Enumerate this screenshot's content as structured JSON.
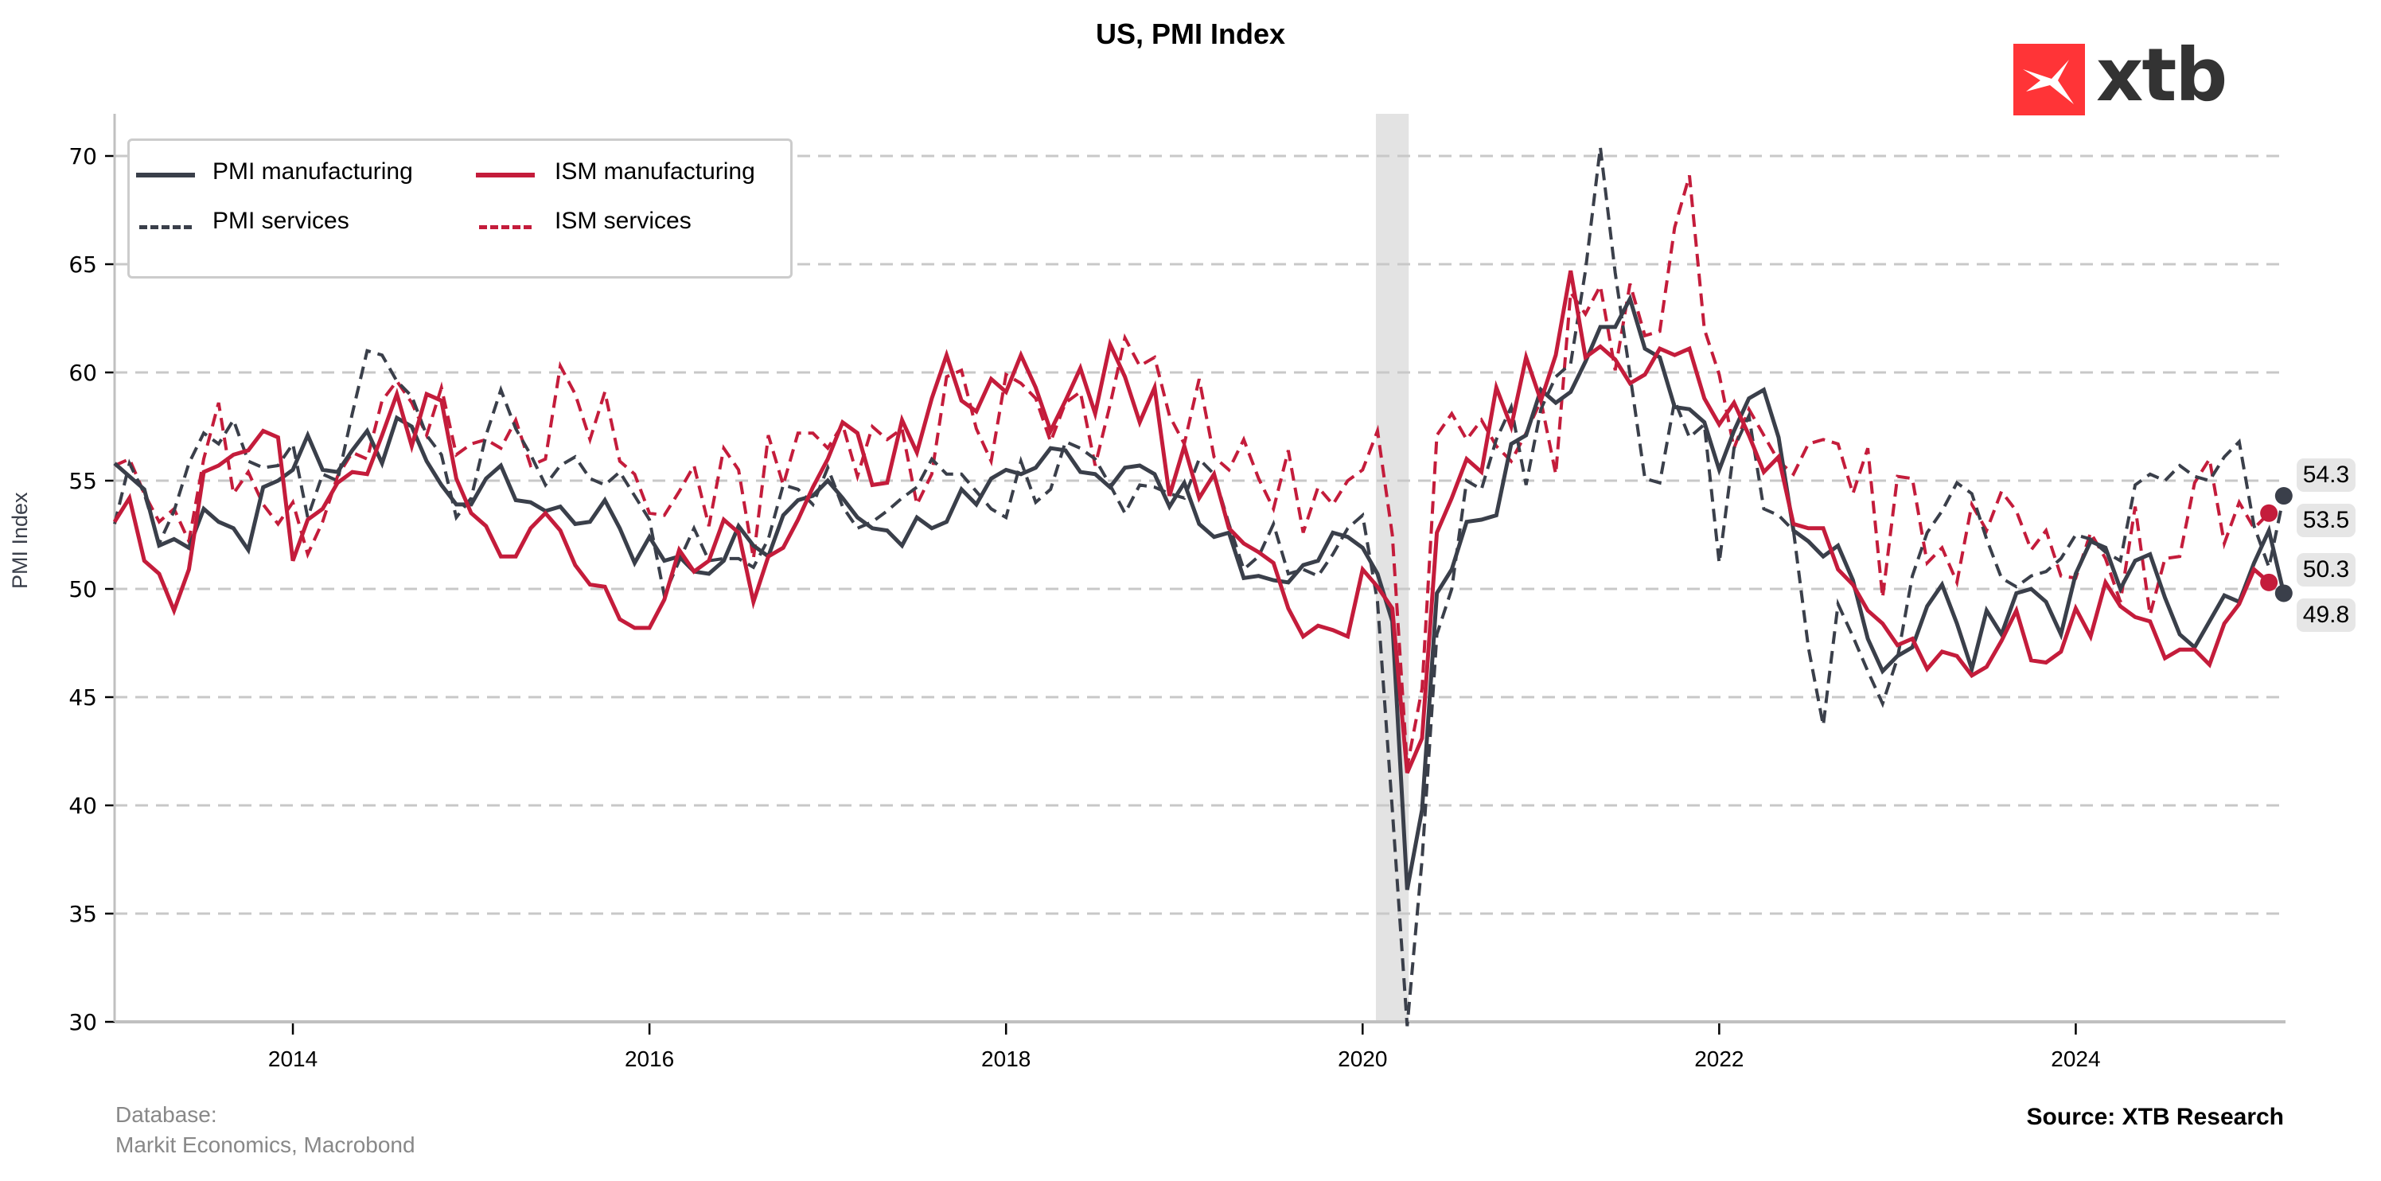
{
  "chart_data": {
    "type": "line",
    "title": "US, PMI Index",
    "xlabel": "",
    "ylabel": "PMI Index",
    "ylim": [
      30,
      72
    ],
    "yticks": [
      30,
      35,
      40,
      45,
      50,
      55,
      60,
      65,
      70
    ],
    "xticks": [
      "2014",
      "2016",
      "2018",
      "2020",
      "2022",
      "2024"
    ],
    "x_start": "2013-01",
    "frequency": "monthly",
    "grid": "horizontal dashed",
    "legend_position": "top-left",
    "shaded_periods": [
      {
        "label": "recession",
        "from": "2020-02",
        "to": "2020-04"
      }
    ],
    "series": [
      {
        "name": "PMI manufacturing",
        "style": "solid",
        "color": "#3a3f4a",
        "end_label": "49.8",
        "values": [
          55.8,
          55.2,
          54.6,
          52.0,
          52.3,
          51.9,
          53.7,
          53.1,
          52.8,
          51.8,
          54.7,
          55.0,
          55.5,
          57.1,
          55.5,
          55.4,
          56.4,
          57.3,
          55.8,
          57.9,
          57.5,
          55.9,
          54.8,
          53.9,
          53.9,
          55.1,
          55.7,
          54.1,
          54.0,
          53.6,
          53.8,
          53.0,
          53.1,
          54.1,
          52.8,
          51.2,
          52.4,
          51.3,
          51.5,
          50.8,
          50.7,
          51.3,
          52.9,
          52.0,
          51.5,
          53.4,
          54.1,
          54.3,
          55.0,
          54.2,
          53.3,
          52.8,
          52.7,
          52.0,
          53.3,
          52.8,
          53.1,
          54.6,
          53.9,
          55.1,
          55.5,
          55.3,
          55.6,
          56.5,
          56.4,
          55.4,
          55.3,
          54.7,
          55.6,
          55.7,
          55.3,
          53.8,
          54.9,
          53.0,
          52.4,
          52.6,
          50.5,
          50.6,
          50.4,
          50.3,
          51.1,
          51.3,
          52.6,
          52.4,
          51.9,
          50.7,
          48.5,
          36.1,
          39.8,
          49.8,
          50.9,
          53.1,
          53.2,
          53.4,
          56.7,
          57.1,
          59.2,
          58.6,
          59.1,
          60.5,
          62.1,
          62.1,
          63.4,
          61.1,
          60.7,
          58.4,
          58.3,
          57.7,
          55.5,
          57.3,
          58.8,
          59.2,
          57.0,
          52.7,
          52.2,
          51.5,
          52.0,
          50.4,
          47.7,
          46.2,
          46.9,
          47.3,
          49.2,
          50.2,
          48.4,
          46.3,
          49.0,
          47.9,
          49.8,
          50.0,
          49.4,
          47.9,
          50.7,
          52.2,
          51.9,
          50.0,
          51.3,
          51.6,
          49.6,
          47.9,
          47.3,
          48.5,
          49.7,
          49.4,
          51.2,
          52.7,
          49.8
        ]
      },
      {
        "name": "PMI services",
        "style": "dashed",
        "color": "#3a3f4a",
        "end_label": "54.3",
        "values": [
          53.0,
          55.8,
          54.4,
          52.1,
          53.6,
          55.8,
          57.2,
          56.7,
          57.8,
          55.9,
          55.6,
          55.7,
          56.7,
          53.3,
          55.3,
          55.0,
          58.1,
          61.0,
          60.8,
          59.6,
          58.9,
          57.1,
          56.2,
          53.3,
          54.2,
          57.1,
          59.2,
          57.4,
          56.2,
          54.8,
          55.7,
          56.1,
          55.1,
          54.8,
          55.4,
          54.3,
          53.2,
          49.7,
          51.3,
          52.8,
          51.3,
          51.4,
          51.4,
          51.0,
          52.3,
          54.8,
          54.6,
          53.9,
          55.6,
          53.8,
          52.8,
          53.1,
          53.6,
          54.2,
          54.7,
          56.0,
          55.3,
          55.3,
          54.5,
          53.7,
          53.3,
          55.9,
          54.0,
          54.6,
          56.8,
          56.5,
          56.0,
          54.8,
          53.5,
          54.8,
          54.7,
          54.4,
          54.2,
          56.0,
          55.3,
          53.0,
          50.9,
          51.5,
          53.0,
          50.7,
          50.9,
          50.6,
          51.6,
          52.8,
          53.4,
          49.4,
          39.8,
          26.7,
          37.5,
          47.9,
          50.0,
          55.0,
          54.6,
          56.9,
          58.4,
          54.8,
          58.3,
          59.8,
          60.4,
          64.7,
          70.4,
          64.6,
          59.9,
          55.1,
          54.9,
          58.7,
          57.0,
          57.6,
          51.2,
          56.5,
          58.0,
          53.7,
          53.4,
          52.7,
          47.3,
          43.7,
          49.3,
          47.8,
          46.2,
          44.7,
          46.8,
          50.6,
          52.6,
          53.6,
          54.9,
          54.4,
          52.3,
          50.5,
          50.1,
          50.6,
          50.8,
          51.4,
          52.5,
          52.3,
          51.7,
          51.3,
          54.8,
          55.3,
          55.0,
          55.7,
          55.2,
          55.0,
          56.1,
          56.8,
          52.9,
          51.0,
          54.3
        ]
      },
      {
        "name": "ISM manufacturing",
        "style": "solid",
        "color": "#c41c3b",
        "end_label": "50.3",
        "values": [
          53.1,
          54.2,
          51.3,
          50.7,
          49.0,
          50.9,
          55.4,
          55.7,
          56.2,
          56.4,
          57.3,
          57.0,
          51.3,
          53.2,
          53.7,
          54.9,
          55.4,
          55.3,
          57.1,
          59.0,
          56.6,
          59.0,
          58.7,
          55.1,
          53.5,
          52.9,
          51.5,
          51.5,
          52.8,
          53.5,
          52.7,
          51.1,
          50.2,
          50.1,
          48.6,
          48.2,
          48.2,
          49.5,
          51.8,
          50.8,
          51.3,
          53.2,
          52.6,
          49.4,
          51.5,
          51.9,
          53.2,
          54.7,
          56.0,
          57.7,
          57.2,
          54.8,
          54.9,
          57.8,
          56.3,
          58.8,
          60.8,
          58.7,
          58.2,
          59.7,
          59.1,
          60.8,
          59.3,
          57.3,
          58.7,
          60.2,
          58.1,
          61.3,
          59.8,
          57.7,
          59.3,
          54.3,
          56.6,
          54.2,
          55.3,
          52.8,
          52.1,
          51.7,
          51.2,
          49.1,
          47.8,
          48.3,
          48.1,
          47.8,
          50.9,
          50.1,
          49.1,
          41.5,
          43.1,
          52.6,
          54.2,
          56.0,
          55.4,
          59.3,
          57.5,
          60.7,
          58.7,
          60.8,
          64.7,
          60.7,
          61.2,
          60.6,
          59.5,
          59.9,
          61.1,
          60.8,
          61.1,
          58.8,
          57.6,
          58.6,
          57.1,
          55.4,
          56.1,
          53.0,
          52.8,
          52.8,
          50.9,
          50.2,
          49.0,
          48.4,
          47.4,
          47.7,
          46.3,
          47.1,
          46.9,
          46.0,
          46.4,
          47.6,
          49.0,
          46.7,
          46.6,
          47.1,
          49.1,
          47.8,
          50.3,
          49.2,
          48.7,
          48.5,
          46.8,
          47.2,
          47.2,
          46.5,
          48.4,
          49.3,
          50.9,
          50.3
        ]
      },
      {
        "name": "ISM services",
        "style": "dashed",
        "color": "#c41c3b",
        "end_label": "53.5",
        "values": [
          55.7,
          56.0,
          54.4,
          53.1,
          53.7,
          52.2,
          56.0,
          58.6,
          54.4,
          55.4,
          53.9,
          53.0,
          54.0,
          51.6,
          53.1,
          55.2,
          56.3,
          56.0,
          58.7,
          59.6,
          58.6,
          57.1,
          59.3,
          56.2,
          56.7,
          56.9,
          56.5,
          57.8,
          55.7,
          56.0,
          60.3,
          59.0,
          56.9,
          59.1,
          55.9,
          55.3,
          53.5,
          53.4,
          54.5,
          55.7,
          52.9,
          56.5,
          55.5,
          51.4,
          57.1,
          54.8,
          57.2,
          57.2,
          56.5,
          57.6,
          55.2,
          57.5,
          56.9,
          57.4,
          53.9,
          55.3,
          59.8,
          60.1,
          57.4,
          55.9,
          59.9,
          59.5,
          58.8,
          56.8,
          58.6,
          59.1,
          55.7,
          58.5,
          61.6,
          60.3,
          60.7,
          58.0,
          56.7,
          59.7,
          56.1,
          55.5,
          56.9,
          55.1,
          53.7,
          56.4,
          52.6,
          54.7,
          53.9,
          55.0,
          55.5,
          57.3,
          52.5,
          41.8,
          45.4,
          57.1,
          58.1,
          56.9,
          57.8,
          56.6,
          55.9,
          57.2,
          58.7,
          55.3,
          63.7,
          62.7,
          64.0,
          60.1,
          64.1,
          61.7,
          61.9,
          66.7,
          69.1,
          62.0,
          59.9,
          56.5,
          58.3,
          57.1,
          55.9,
          55.3,
          56.7,
          56.9,
          56.7,
          54.4,
          56.5,
          49.6,
          55.2,
          55.1,
          51.2,
          51.9,
          50.3,
          53.9,
          52.7,
          54.5,
          53.6,
          51.8,
          52.7,
          50.6,
          50.5,
          52.6,
          51.4,
          49.4,
          53.8,
          48.8,
          51.4,
          51.5,
          54.9,
          56.0,
          52.1,
          54.0,
          52.8,
          53.5
        ]
      }
    ]
  },
  "footer": {
    "database_label": "Database:",
    "database_sources": "Markit Economics, Macrobond",
    "source": "Source: XTB Research"
  },
  "brand": {
    "logo_text": "xtb",
    "logo_color": "#ff3437"
  }
}
